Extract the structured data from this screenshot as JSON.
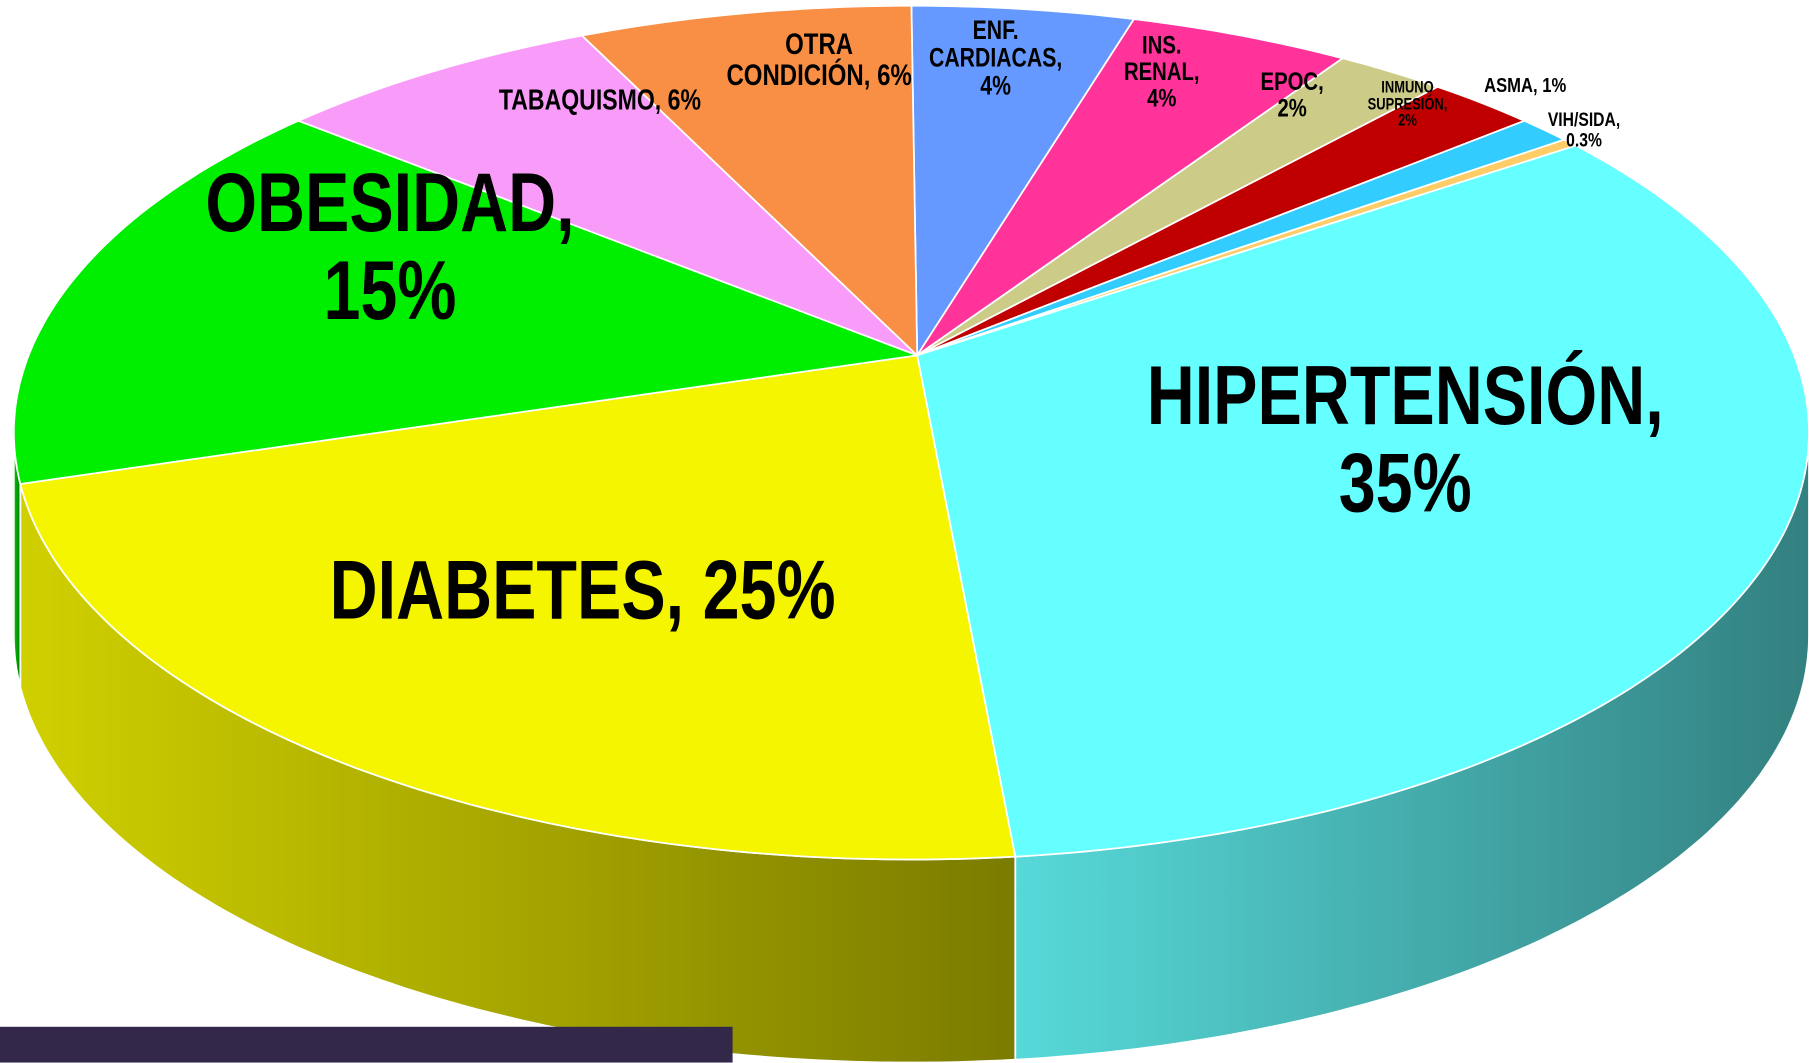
{
  "chart_data": {
    "type": "pie",
    "values": [
      4,
      4,
      2,
      2,
      1,
      0.3,
      35,
      25,
      15,
      6,
      6
    ],
    "value_labels": [
      "ENF.\nCARDIACAS,\n4%",
      "INS.\nRENAL,\n4%",
      "EPOC,\n2%",
      "INMUNO\nSUPRESIÓN,\n2%",
      "ASMA, 1%",
      "VIH/SIDA,\n0.3%",
      "HIPERTENSIÓN, 35%",
      "DIABETES, 25%",
      "OBESIDAD,\n15%",
      "TABAQUISMO, 6%",
      "OTRA\nCONDICIÓN, 6%"
    ],
    "colors": [
      "#6699ff",
      "#ff3399",
      "#cccc88",
      "#c00000",
      "#33ccff",
      "#ffcc66",
      "#66ffff",
      "#f5f500",
      "#00ee00",
      "#f99cf9",
      "#f98f45"
    ]
  }
}
